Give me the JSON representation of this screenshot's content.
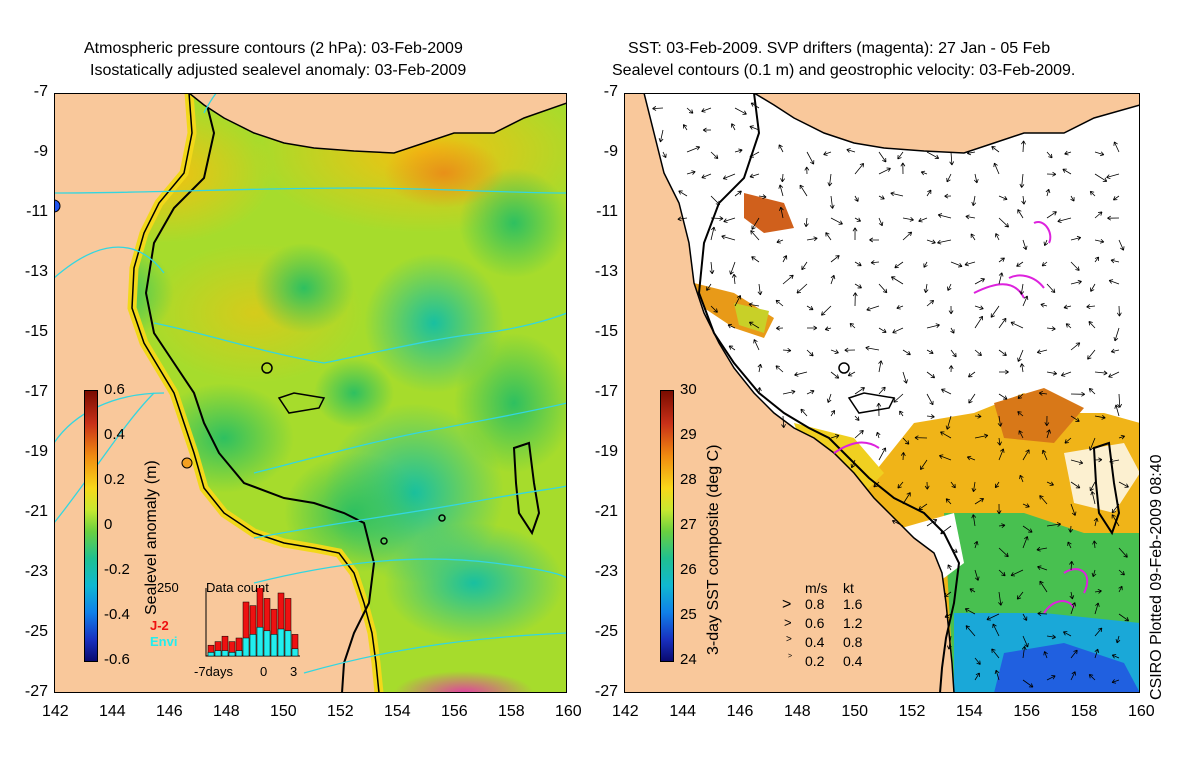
{
  "left": {
    "title_line1": "Atmospheric pressure contours (2 hPa): 03-Feb-2009",
    "title_line2": "Isostatically adjusted sealevel anomaly: 03-Feb-2009",
    "colorbar": {
      "label": "Sealevel anomaly (m)",
      "ticks": [
        "0.6",
        "0.4",
        "0.2",
        "0",
        "-0.2",
        "-0.4",
        "-0.6"
      ]
    },
    "inset": {
      "title": "Data count",
      "ymax": "250",
      "series_a": "J-2",
      "series_b": "Envi",
      "xaxis": [
        "-7days",
        "0",
        "3"
      ],
      "colors": {
        "a": "#ee1111",
        "b": "#22eeee"
      }
    }
  },
  "right": {
    "title_line1": "SST: 03-Feb-2009. SVP drifters (magenta): 27 Jan - 05 Feb",
    "title_line2": "Sealevel contours (0.1 m) and geostrophic velocity: 03-Feb-2009.",
    "colorbar": {
      "label": "3-day SST composite (deg C)",
      "ticks": [
        "30",
        "29",
        "28",
        "27",
        "26",
        "25",
        "24"
      ]
    },
    "velocity_legend": {
      "header_ms": "m/s",
      "header_kt": "kt",
      "rows": [
        {
          "ms": "0.8",
          "kt": "1.6"
        },
        {
          "ms": "0.6",
          "kt": "1.2"
        },
        {
          "ms": "0.4",
          "kt": "0.8"
        },
        {
          "ms": "0.2",
          "kt": "0.4"
        }
      ]
    },
    "plotted_note": "CSIRO Plotted 09-Feb-2009 08:40"
  },
  "axes": {
    "x_ticks": [
      "142",
      "144",
      "146",
      "148",
      "150",
      "152",
      "154",
      "156",
      "158",
      "160"
    ],
    "y_ticks": [
      "-7",
      "-9",
      "-11",
      "-13",
      "-15",
      "-17",
      "-19",
      "-21",
      "-23",
      "-25",
      "-27"
    ]
  },
  "colors": {
    "land": "#f9c89b",
    "coast": "#000000",
    "pressure_contour": "#33d6e0",
    "drifter": "#dd22dd",
    "station_marker": "#2255ee"
  }
}
